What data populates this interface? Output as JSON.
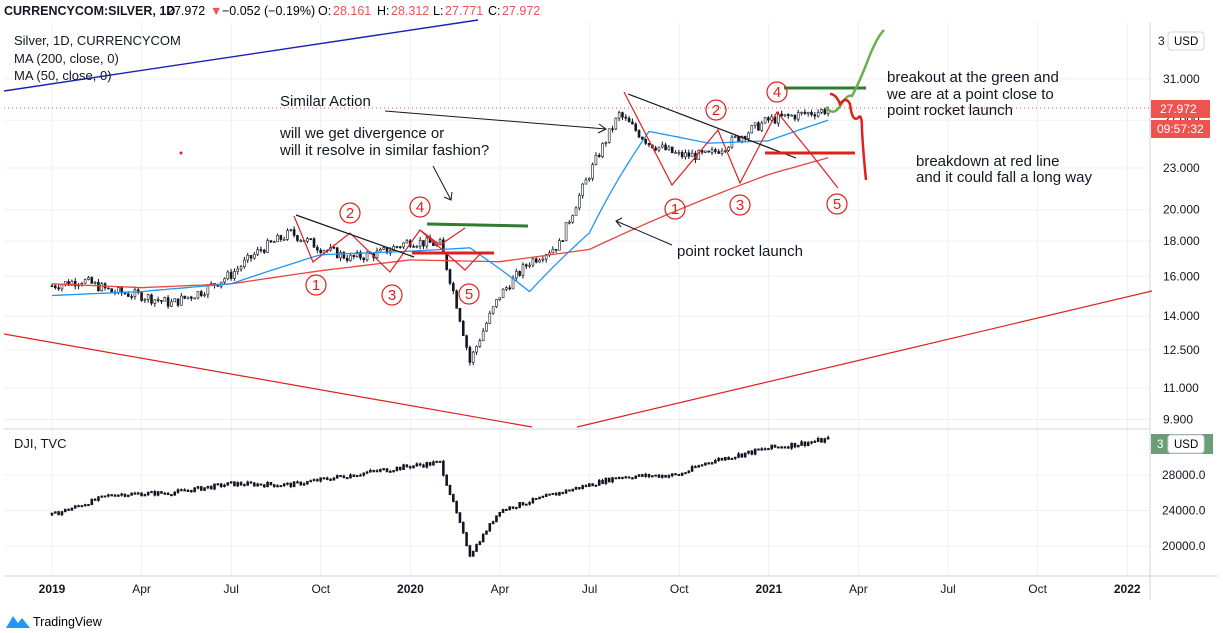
{
  "header": {
    "symbol": "CURRENCYCOM:SILVER, 1D",
    "last": "27.972",
    "change_arrow": "▼",
    "change": "−0.052 (−0.19%)",
    "open_label": "O:",
    "open": "28.161",
    "high_label": "H:",
    "high": "28.312",
    "low_label": "L:",
    "low": "27.771",
    "close_label": "C:",
    "close": "27.972"
  },
  "legend": {
    "title": "Silver, 1D, CURRENCYCOM",
    "ma200": "MA (200, close, 0)",
    "ma50": "MA (50, close, 0)"
  },
  "currency_button": "USD",
  "price_badge": "27.972",
  "countdown_badge": "09:57:32",
  "lower_pane": {
    "title": "DJI, TVC",
    "currency_button": "USD",
    "badge": "3",
    "ticks": [
      "28000.0",
      "24000.0",
      "20000.0"
    ]
  },
  "annotations": {
    "similar_action": "Similar Action",
    "question_1": "will we get divergence or",
    "question_2": "will it resolve in similar fashion?",
    "rocket_launch": "point rocket launch",
    "breakout_1": "breakout at the green and",
    "breakout_2": "we are at a point close to",
    "breakout_3": "point rocket launch",
    "breakdown_1": "breakdown at red line",
    "breakdown_2": "and it could fall a long way"
  },
  "wave_labels": [
    "1",
    "2",
    "3",
    "4",
    "5",
    "1",
    "2",
    "3",
    "4",
    "5"
  ],
  "logo": "TradingView",
  "colors": {
    "ma200": "#e8453c",
    "ma50": "#2196f3",
    "candle": "#131722",
    "annotation_red": "#e01f1f",
    "annotation_green": "#2e7d32",
    "light_green": "#6ab04c",
    "trend_blue": "#1a1fb5",
    "badge_red": "#ef5350",
    "badge_green": "#6b9e76"
  },
  "chart_data": [
    {
      "type": "line",
      "series": [
        {
          "name": "Silver, 1D, CURRENCYCOM",
          "x": [
            "2019-01",
            "2019-02",
            "2019-03",
            "2019-04",
            "2019-05",
            "2019-06",
            "2019-07",
            "2019-08",
            "2019-09",
            "2019-10",
            "2019-11",
            "2019-12",
            "2020-01",
            "2020-02",
            "2020-03",
            "2020-04",
            "2020-05",
            "2020-06",
            "2020-07",
            "2020-08",
            "2020-09",
            "2020-10",
            "2020-11",
            "2020-12",
            "2021-01",
            "2021-02",
            "2021-03"
          ],
          "values": [
            15.5,
            15.8,
            15.2,
            15.0,
            14.6,
            15.2,
            16.1,
            17.5,
            18.5,
            17.6,
            17.0,
            17.3,
            18.0,
            17.8,
            12.0,
            15.0,
            16.8,
            17.8,
            22.5,
            27.5,
            25.0,
            24.0,
            24.0,
            25.5,
            27.0,
            27.5,
            27.972
          ]
        },
        {
          "name": "MA (200, close, 0)",
          "x": [
            "2019-01",
            "2019-04",
            "2019-07",
            "2019-10",
            "2020-01",
            "2020-04",
            "2020-07",
            "2020-10",
            "2021-01",
            "2021-03"
          ],
          "values": [
            15.6,
            15.4,
            15.6,
            16.3,
            16.9,
            16.8,
            17.5,
            20.0,
            22.5,
            23.8
          ]
        },
        {
          "name": "MA (50, close, 0)",
          "x": [
            "2019-01",
            "2019-04",
            "2019-07",
            "2019-10",
            "2020-01",
            "2020-03",
            "2020-05",
            "2020-07",
            "2020-09",
            "2020-11",
            "2021-01",
            "2021-03"
          ],
          "values": [
            15.0,
            15.2,
            15.6,
            17.2,
            17.4,
            17.6,
            15.2,
            18.5,
            26.0,
            25.0,
            25.2,
            27.0
          ]
        }
      ],
      "y_ticks": [
        "31.000",
        "27.000",
        "23.000",
        "20.000",
        "18.000",
        "16.000",
        "14.000",
        "12.500",
        "11.000",
        "9.900"
      ],
      "x_ticks": [
        "2019",
        "Apr",
        "Jul",
        "Oct",
        "2020",
        "Apr",
        "Jul",
        "Oct",
        "2021",
        "Apr",
        "Jul",
        "Oct",
        "2022"
      ],
      "log_scale": true,
      "grid": true
    },
    {
      "type": "line",
      "series": [
        {
          "name": "DJI, TVC",
          "x": [
            "2019-01",
            "2019-03",
            "2019-05",
            "2019-07",
            "2019-09",
            "2019-11",
            "2020-01",
            "2020-02",
            "2020-03",
            "2020-04",
            "2020-06",
            "2020-08",
            "2020-10",
            "2020-11",
            "2021-01",
            "2021-03"
          ],
          "values": [
            23500,
            25800,
            26000,
            27000,
            26900,
            28000,
            29000,
            29400,
            19000,
            24000,
            26000,
            27800,
            28000,
            29500,
            31000,
            32000
          ]
        }
      ],
      "y_ticks": [
        "28000.0",
        "24000.0",
        "20000.0"
      ]
    }
  ]
}
